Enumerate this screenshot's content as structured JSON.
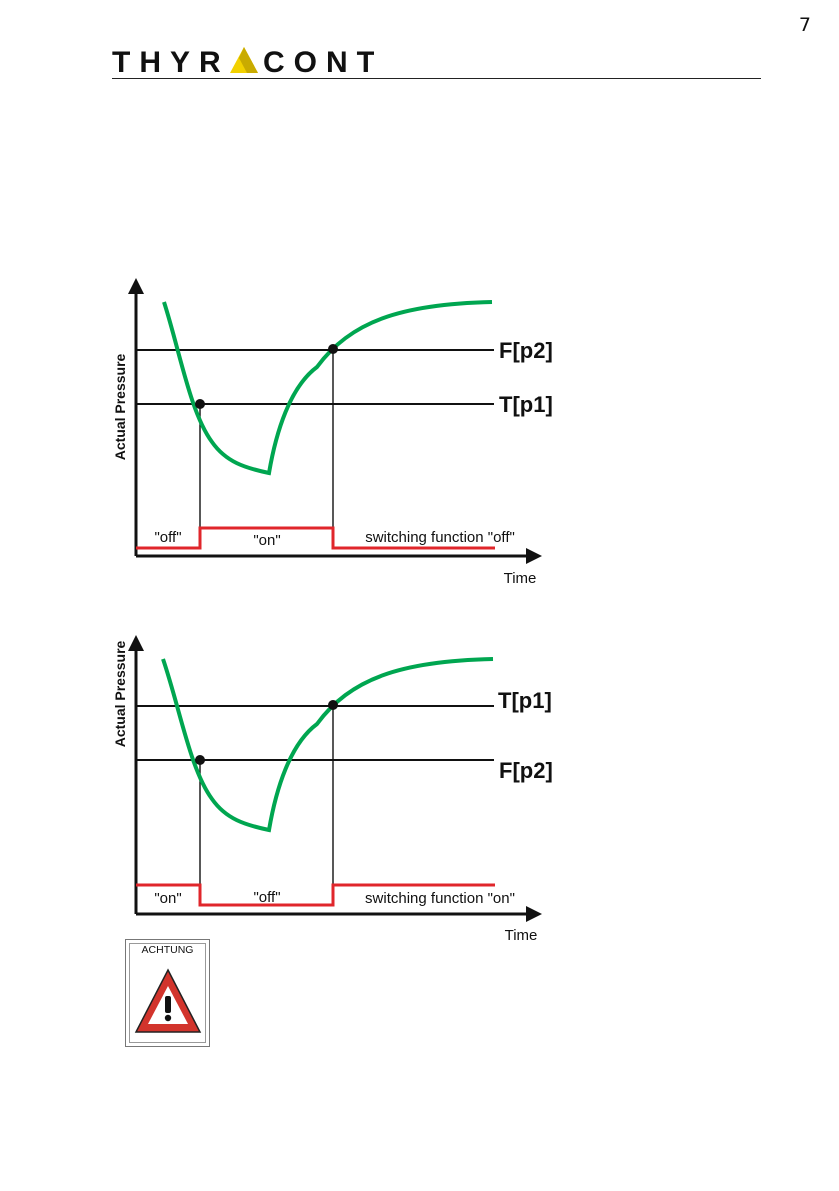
{
  "page": {
    "number": "7"
  },
  "logo": {
    "text": "THYRACONT",
    "accent_color": "#f2d100"
  },
  "diagrams": [
    {
      "y_axis_label": "Actual Pressure",
      "x_axis_label": "Time",
      "upper_line_label": "F[p2]",
      "lower_line_label": "T[p1]",
      "segments": {
        "first": "\"off\"",
        "middle": "\"on\"",
        "last": "switching function \"off\""
      }
    },
    {
      "y_axis_label": "Actual Pressure",
      "x_axis_label": "Time",
      "upper_line_label": "T[p1]",
      "lower_line_label": "F[p2]",
      "segments": {
        "first": "\"on\"",
        "middle": "\"off\"",
        "last": "switching function \"on\""
      }
    }
  ],
  "warning": {
    "label": "ACHTUNG",
    "symbol": "exclamation-triangle-icon"
  },
  "colors": {
    "curve": "#00a650",
    "signal": "#e0262b",
    "axis": "#111111"
  }
}
